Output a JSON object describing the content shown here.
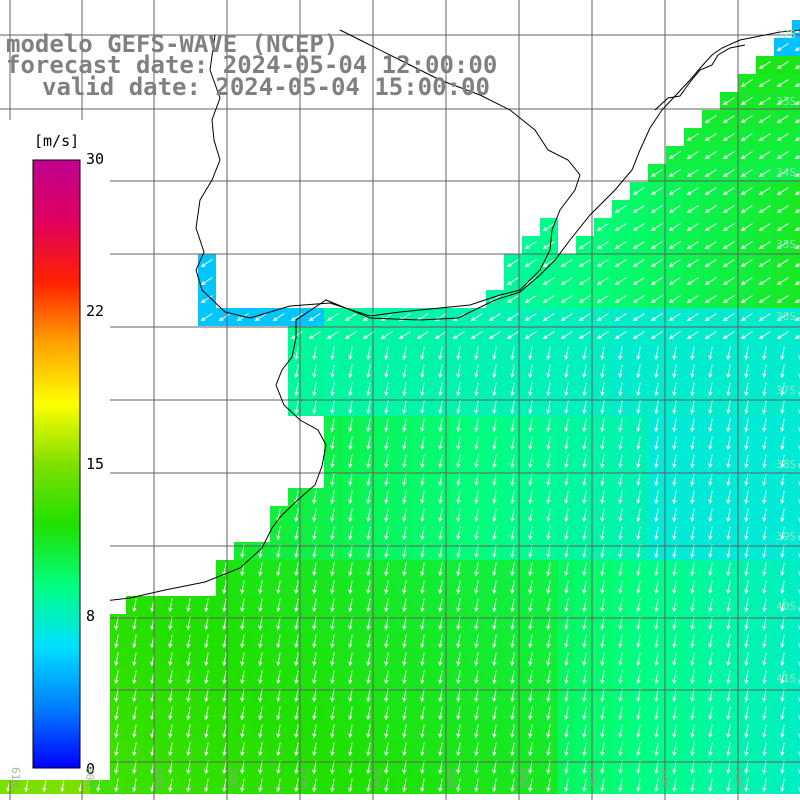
{
  "title": {
    "line1": "modelo GEFS-WAVE (NCEP)",
    "line2": "forecast date: 2024-05-04 12:00:00",
    "line3": "valid date: 2024-05-04 15:00:00"
  },
  "colorbar": {
    "unit": "[m/s]",
    "ticks": [
      "30",
      "22",
      "15",
      "8",
      "0"
    ],
    "tick_values": [
      30,
      22,
      15,
      8,
      0
    ],
    "min": 0,
    "max": 30,
    "colors": [
      "#0000ff",
      "#0080ff",
      "#00e0ff",
      "#00ff80",
      "#20e000",
      "#80e000",
      "#ffff00",
      "#ffa000",
      "#ff2000",
      "#e00060",
      "#c00090"
    ]
  },
  "axes": {
    "lat_labels": [
      "32S",
      "33S",
      "34S",
      "35S",
      "36S",
      "37S",
      "38S",
      "39S",
      "40S",
      "41S"
    ],
    "lon_labels": [
      "61W",
      "60W",
      "59W",
      "58W",
      "57W",
      "56W",
      "55W",
      "54W",
      "53W",
      "52W",
      "51W"
    ]
  },
  "colors": {
    "land": "#ffffff",
    "coast": "#000000",
    "grid": "#606060",
    "arrows": "#ffffff",
    "title": "#808080"
  }
}
